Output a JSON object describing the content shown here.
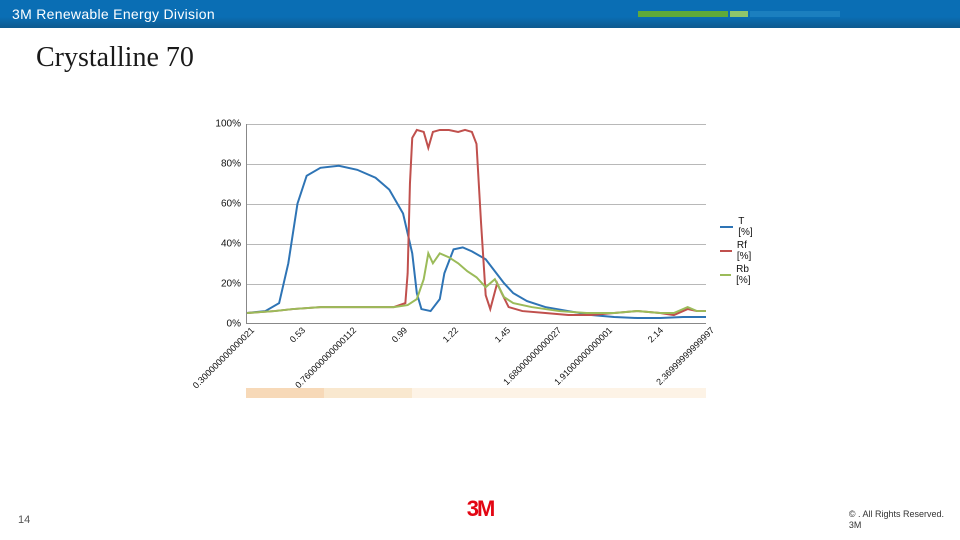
{
  "header": {
    "title": "3M Renewable Energy Division",
    "bar_bg": "#0a6eb4",
    "accent_colors": [
      "#5faa3a",
      "#8fc56b",
      "#1b7fbf"
    ]
  },
  "slide": {
    "title": "Crystalline 70",
    "title_font": "Georgia",
    "title_fontsize": 28,
    "page_number": "14"
  },
  "chart": {
    "type": "line",
    "ylim": [
      0,
      100
    ],
    "ytick_step": 20,
    "ytick_labels": [
      "0%",
      "20%",
      "40%",
      "60%",
      "80%",
      "100%"
    ],
    "xlabels": [
      "0.300000000000021",
      "0.53",
      "0.760000000000112",
      "0.99",
      "1.22",
      "1.45",
      "1.68000000000027",
      "1.91000000000001",
      "2.14",
      "2.36999999999997"
    ],
    "grid_color": "#b8b8b8",
    "axis_color": "#888888",
    "label_fontsize": 10,
    "xlabel_fontsize": 9,
    "xlabel_rotation": -45,
    "background_color": "#ffffff",
    "legend": {
      "items": [
        {
          "label": "T [%]",
          "color": "#2e74b5"
        },
        {
          "label": "Rf [%]",
          "color": "#c0504d"
        },
        {
          "label": "Rb [%]",
          "color": "#9bbb59"
        }
      ],
      "fontsize": 10
    },
    "series": [
      {
        "name": "T",
        "color": "#2e74b5",
        "width": 2,
        "points": [
          [
            0,
            5
          ],
          [
            0.04,
            6
          ],
          [
            0.07,
            10
          ],
          [
            0.09,
            30
          ],
          [
            0.11,
            60
          ],
          [
            0.13,
            74
          ],
          [
            0.16,
            78
          ],
          [
            0.2,
            79
          ],
          [
            0.24,
            77
          ],
          [
            0.28,
            73
          ],
          [
            0.31,
            67
          ],
          [
            0.34,
            55
          ],
          [
            0.36,
            35
          ],
          [
            0.37,
            15
          ],
          [
            0.38,
            7
          ],
          [
            0.4,
            6
          ],
          [
            0.42,
            12
          ],
          [
            0.43,
            25
          ],
          [
            0.45,
            37
          ],
          [
            0.47,
            38
          ],
          [
            0.49,
            36
          ],
          [
            0.52,
            32
          ],
          [
            0.54,
            26
          ],
          [
            0.56,
            20
          ],
          [
            0.58,
            15
          ],
          [
            0.61,
            11
          ],
          [
            0.65,
            8
          ],
          [
            0.7,
            6
          ],
          [
            0.75,
            4
          ],
          [
            0.8,
            3
          ],
          [
            0.85,
            2.5
          ],
          [
            0.9,
            2.5
          ],
          [
            0.95,
            3
          ],
          [
            1.0,
            3
          ]
        ]
      },
      {
        "name": "Rf",
        "color": "#c0504d",
        "width": 2,
        "points": [
          [
            0,
            5
          ],
          [
            0.06,
            6
          ],
          [
            0.1,
            7
          ],
          [
            0.16,
            8
          ],
          [
            0.22,
            8
          ],
          [
            0.28,
            8
          ],
          [
            0.32,
            8
          ],
          [
            0.345,
            10
          ],
          [
            0.35,
            25
          ],
          [
            0.355,
            70
          ],
          [
            0.36,
            93
          ],
          [
            0.37,
            97
          ],
          [
            0.385,
            96
          ],
          [
            0.395,
            88
          ],
          [
            0.405,
            96
          ],
          [
            0.42,
            97
          ],
          [
            0.44,
            97
          ],
          [
            0.46,
            96
          ],
          [
            0.475,
            97
          ],
          [
            0.49,
            96
          ],
          [
            0.5,
            90
          ],
          [
            0.51,
            50
          ],
          [
            0.52,
            14
          ],
          [
            0.53,
            7
          ],
          [
            0.545,
            20
          ],
          [
            0.555,
            15
          ],
          [
            0.57,
            8
          ],
          [
            0.6,
            6
          ],
          [
            0.65,
            5
          ],
          [
            0.7,
            4
          ],
          [
            0.75,
            4
          ],
          [
            0.8,
            5
          ],
          [
            0.85,
            6
          ],
          [
            0.9,
            5
          ],
          [
            0.93,
            4
          ],
          [
            0.96,
            7
          ],
          [
            0.98,
            6
          ],
          [
            1.0,
            6
          ]
        ]
      },
      {
        "name": "Rb",
        "color": "#9bbb59",
        "width": 2,
        "points": [
          [
            0,
            5
          ],
          [
            0.06,
            6
          ],
          [
            0.1,
            7
          ],
          [
            0.16,
            8
          ],
          [
            0.22,
            8
          ],
          [
            0.28,
            8
          ],
          [
            0.32,
            8
          ],
          [
            0.35,
            9
          ],
          [
            0.37,
            12
          ],
          [
            0.385,
            22
          ],
          [
            0.395,
            35
          ],
          [
            0.405,
            30
          ],
          [
            0.42,
            35
          ],
          [
            0.44,
            33
          ],
          [
            0.46,
            30
          ],
          [
            0.48,
            26
          ],
          [
            0.5,
            23
          ],
          [
            0.52,
            18
          ],
          [
            0.54,
            22
          ],
          [
            0.56,
            13
          ],
          [
            0.58,
            10
          ],
          [
            0.62,
            8
          ],
          [
            0.68,
            6
          ],
          [
            0.74,
            5
          ],
          [
            0.8,
            5
          ],
          [
            0.85,
            6
          ],
          [
            0.9,
            5
          ],
          [
            0.93,
            5
          ],
          [
            0.96,
            8
          ],
          [
            0.98,
            6
          ],
          [
            1.0,
            6
          ]
        ]
      }
    ],
    "bands": [
      {
        "width": 0.17,
        "color": "#f7d9b8"
      },
      {
        "width": 0.19,
        "color": "#f9e8cf"
      },
      {
        "width": 0.64,
        "color": "#fdf3e6"
      }
    ]
  },
  "footer": {
    "logo_text": "3M",
    "logo_color": "#e30613",
    "copyright_line1": "© . All Rights Reserved.",
    "copyright_line2": "3M"
  }
}
